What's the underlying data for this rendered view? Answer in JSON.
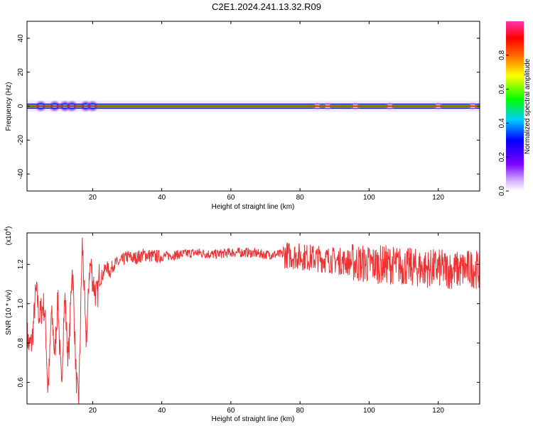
{
  "page": {
    "title": "C2E1.2024.241.13.32.R09"
  },
  "chart_data": [
    {
      "type": "heatmap",
      "title": "C2E1.2024.241.13.32.R09",
      "xlabel": "Height of straight line (km)",
      "ylabel": "Frequency (Hz)",
      "xlim": [
        1,
        132
      ],
      "ylim": [
        -50,
        50
      ],
      "x_ticks": [
        20,
        40,
        60,
        80,
        100,
        120
      ],
      "y_ticks": [
        -40,
        -20,
        0,
        20,
        40
      ],
      "x_tick_labels": [
        "20",
        "40",
        "60",
        "80",
        "100",
        "120"
      ],
      "y_tick_labels": [
        "-40",
        "-20",
        "0",
        "20",
        "40"
      ],
      "colorbar": {
        "label": "Normalized spectral amplitude",
        "range": [
          0,
          1
        ],
        "ticks": [
          0.0,
          0.2,
          0.4,
          0.6,
          0.8
        ],
        "tick_labels": [
          "0.0",
          "0.2",
          "0.4",
          "0.6",
          "0.8"
        ],
        "colormap": "rainbow (purple-blue-cyan-green-yellow-red-magenta)"
      },
      "description_features": {
        "band_center_hz": 0,
        "band_halfwidth_hz": 1.5,
        "bright_spots_km": [
          5,
          9,
          12,
          14,
          18,
          20,
          85,
          88,
          96,
          106,
          120,
          130
        ]
      }
    },
    {
      "type": "line",
      "xlabel": "Height of straight line (km)",
      "ylabel": "SNR (10 * v/v)",
      "y_scale_label": "(x10",
      "y_scale_exp": "4",
      "y_scale_close": ")",
      "xlim": [
        1,
        132
      ],
      "ylim": [
        0.49,
        1.36
      ],
      "x_ticks": [
        20,
        40,
        60,
        80,
        100,
        120
      ],
      "y_ticks": [
        0.6,
        0.8,
        1.0,
        1.2
      ],
      "x_tick_labels": [
        "20",
        "40",
        "60",
        "80",
        "100",
        "120"
      ],
      "y_tick_labels": [
        "0.6",
        "0.8",
        "1.0",
        "1.2"
      ],
      "series": [
        {
          "color": "#ee3333",
          "x": [
            1,
            2,
            3,
            4,
            5,
            6,
            7,
            8,
            9,
            10,
            11,
            12,
            13,
            14,
            15,
            16,
            17,
            18,
            19,
            20,
            21,
            22,
            23,
            24,
            25,
            26,
            28,
            30,
            32,
            35,
            38,
            40,
            45,
            50,
            55,
            60,
            65,
            70,
            75,
            80,
            85,
            90,
            95,
            100,
            105,
            110,
            115,
            120,
            125,
            130,
            132
          ],
          "y": [
            0.75,
            0.92,
            0.85,
            1.0,
            1.08,
            0.86,
            0.62,
            1.0,
            0.6,
            1.15,
            0.55,
            0.95,
            0.85,
            1.1,
            0.72,
            0.62,
            1.18,
            0.88,
            1.2,
            1.0,
            1.17,
            1.12,
            1.15,
            1.19,
            1.16,
            1.2,
            1.21,
            1.24,
            1.23,
            1.25,
            1.24,
            1.24,
            1.25,
            1.26,
            1.25,
            1.26,
            1.26,
            1.25,
            1.25,
            1.24,
            1.23,
            1.22,
            1.21,
            1.2,
            1.2,
            1.19,
            1.18,
            1.18,
            1.17,
            1.18,
            1.17
          ]
        }
      ]
    }
  ]
}
